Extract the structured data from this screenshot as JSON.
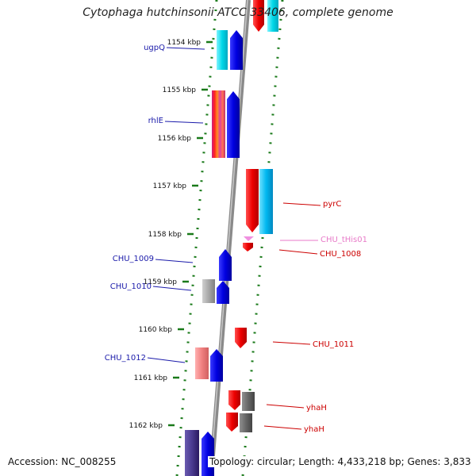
{
  "title": "Cytophaga hutchinsonii ATCC 33406, complete genome",
  "accession_label": "Accession: NC_008255",
  "summary_label": "Topology: circular; Length: 4,433,218 bp; Genes: 3,833",
  "colors": {
    "backbone": "#8a8a8a",
    "ticks": "#1a7a1a",
    "forward_label": "#1a1aaa",
    "reverse_label": "#cc0000",
    "trna_label": "#e87ac8"
  },
  "kbp_ticks": [
    "1154 kbp",
    "1155 kbp",
    "1156 kbp",
    "1157 kbp",
    "1158 kbp",
    "1159 kbp",
    "1160 kbp",
    "1161 kbp",
    "1162 kbp"
  ],
  "forward_genes": [
    {
      "label": "ugpQ",
      "icon": "forward-arrow-blue"
    },
    {
      "label": "rhlE",
      "icon": "forward-arrow-blue"
    },
    {
      "label": "CHU_1009",
      "icon": "forward-arrow-blue"
    },
    {
      "label": "CHU_1010",
      "icon": "forward-arrow-blue"
    },
    {
      "label": "CHU_1012",
      "icon": "forward-arrow-blue"
    }
  ],
  "reverse_genes": [
    {
      "label": "pyrC",
      "icon": "reverse-arrow-red"
    },
    {
      "label": "CHU_tHis01",
      "icon": "trna-marker"
    },
    {
      "label": "CHU_1008",
      "icon": "reverse-arrow-red"
    },
    {
      "label": "CHU_1011",
      "icon": "reverse-arrow-red"
    },
    {
      "label": "yhaH",
      "icon": "reverse-arrow-red"
    },
    {
      "label": "yhaH",
      "icon": "reverse-arrow-red"
    }
  ]
}
